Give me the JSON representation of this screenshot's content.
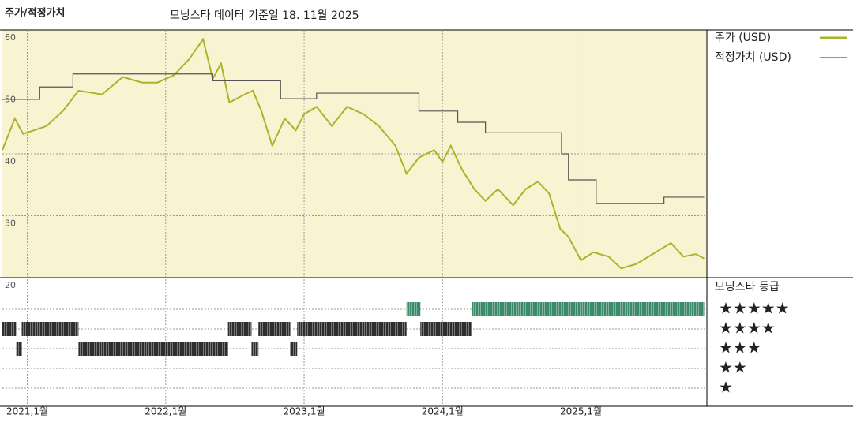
{
  "chart_data": {
    "type": "line",
    "title": "주가/적정가치",
    "subtitle": "모닝스타 데이터 기준일 18. 11월 2025",
    "xlim": [
      2020.82,
      2025.91
    ],
    "xticks": [
      {
        "value": 2021,
        "label": "2021,1월"
      },
      {
        "value": 2022,
        "label": "2022,1월"
      },
      {
        "value": 2023,
        "label": "2023,1월"
      },
      {
        "value": 2024,
        "label": "2024,1월"
      },
      {
        "value": 2025,
        "label": "2025,1월"
      }
    ],
    "ylim": [
      20,
      60
    ],
    "yticks": [
      20,
      30,
      40,
      50,
      60
    ],
    "grid": true,
    "series": [
      {
        "name": "주가 (USD)",
        "color": "#aab42a",
        "x": [
          2020.82,
          2020.91,
          2020.97,
          2021.14,
          2021.26,
          2021.37,
          2021.54,
          2021.69,
          2021.83,
          2021.94,
          2022.06,
          2022.17,
          2022.27,
          2022.34,
          2022.4,
          2022.46,
          2022.57,
          2022.63,
          2022.69,
          2022.77,
          2022.86,
          2022.94,
          2023.0,
          2023.09,
          2023.2,
          2023.31,
          2023.43,
          2023.54,
          2023.66,
          2023.74,
          2023.83,
          2023.94,
          2024.0,
          2024.06,
          2024.14,
          2024.23,
          2024.31,
          2024.4,
          2024.51,
          2024.6,
          2024.69,
          2024.77,
          2024.85,
          2024.91,
          2025.0,
          2025.09,
          2025.2,
          2025.29,
          2025.4,
          2025.54,
          2025.65,
          2025.74,
          2025.83,
          2025.89
        ],
        "values": [
          40.6,
          45.7,
          43.2,
          44.5,
          47.0,
          50.2,
          49.6,
          52.4,
          51.5,
          51.5,
          52.7,
          55.3,
          58.5,
          52.1,
          54.6,
          48.3,
          49.6,
          50.2,
          47.0,
          41.3,
          45.7,
          43.8,
          46.4,
          47.6,
          44.5,
          47.6,
          46.4,
          44.5,
          41.3,
          36.8,
          39.4,
          40.6,
          38.7,
          41.3,
          37.5,
          34.3,
          32.4,
          34.3,
          31.7,
          34.3,
          35.5,
          33.6,
          27.9,
          26.6,
          22.8,
          24.1,
          23.4,
          21.5,
          22.2,
          24.1,
          25.6,
          23.4,
          23.8,
          23.1
        ]
      },
      {
        "name": "적정가치 (USD)",
        "color": "#555555",
        "step": "post",
        "x": [
          2020.82,
          2021.09,
          2021.33,
          2022.34,
          2022.83,
          2023.09,
          2023.83,
          2024.11,
          2024.31,
          2024.86,
          2024.91,
          2025.11,
          2025.6,
          2025.89
        ],
        "values": [
          48.8,
          50.8,
          52.9,
          51.8,
          48.9,
          49.8,
          46.9,
          45.1,
          43.4,
          40.0,
          35.8,
          32.0,
          33.0,
          33.0
        ]
      }
    ],
    "ratings": {
      "title": "모닝스타 등급",
      "levels": [
        5,
        4,
        3,
        2,
        1
      ],
      "labels": [
        "★★★★★",
        "★★★★",
        "★★★",
        "★★",
        "★"
      ],
      "colors": [
        "#2e2e2e",
        "#2e2e2e",
        "#2e2e2e",
        "#2e2e2e",
        "#3b8a6a"
      ],
      "start": [
        2020.82,
        2020.92,
        2020.96,
        2021.37,
        2022.45,
        2022.62,
        2022.67,
        2022.9,
        2022.95,
        2023.74,
        2023.84,
        2024.21
      ],
      "end": [
        2020.92,
        2020.96,
        2021.37,
        2022.45,
        2022.62,
        2022.67,
        2022.9,
        2022.95,
        2023.74,
        2023.84,
        2024.21,
        2025.89
      ],
      "values": [
        4,
        3,
        4,
        3,
        4,
        3,
        4,
        3,
        4,
        5,
        4,
        5
      ]
    }
  }
}
